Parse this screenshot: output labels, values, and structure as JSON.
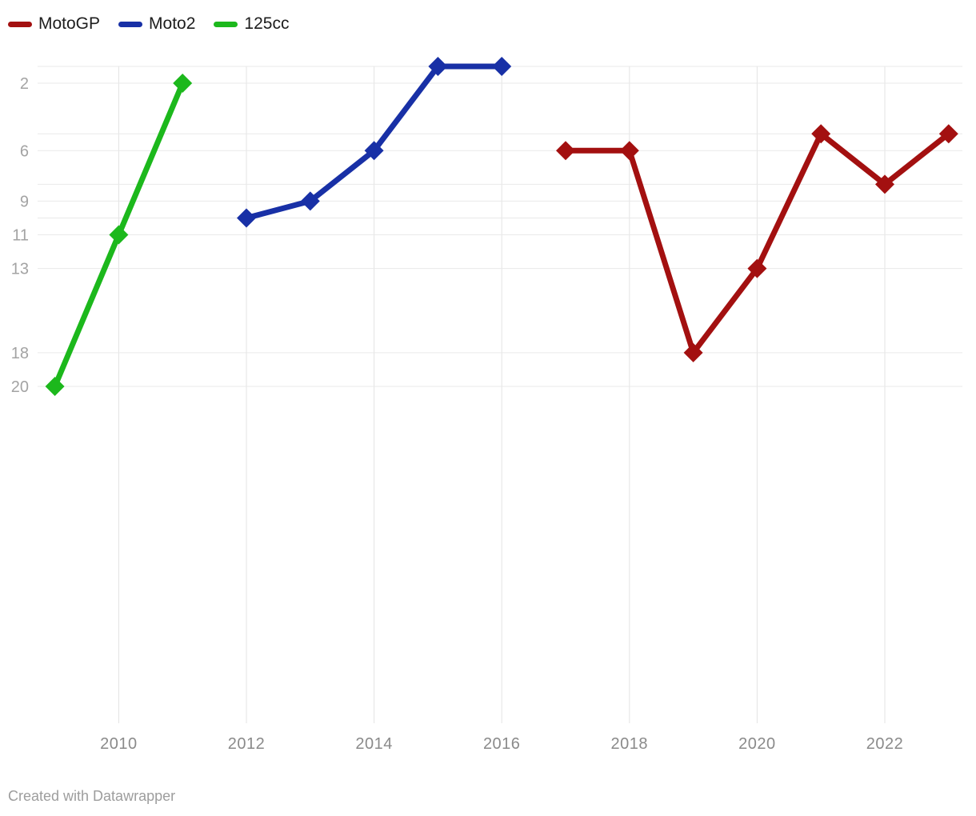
{
  "chart_data": {
    "type": "line",
    "title": "",
    "legend_position": "top-left",
    "grid": true,
    "marker": "diamond",
    "series": [
      {
        "name": "MotoGP",
        "color": "#a31010",
        "x": [
          2017,
          2018,
          2019,
          2020,
          2021,
          2022,
          2023
        ],
        "values": [
          6,
          6,
          18,
          13,
          5,
          8,
          5
        ]
      },
      {
        "name": "Moto2",
        "color": "#1830a6",
        "x": [
          2012,
          2013,
          2014,
          2015,
          2016
        ],
        "values": [
          10,
          9,
          6,
          1,
          1
        ]
      },
      {
        "name": "125cc",
        "color": "#1cb81c",
        "x": [
          2009,
          2010,
          2011
        ],
        "values": [
          20,
          11,
          2
        ]
      }
    ],
    "x_axis": {
      "min": 2009,
      "max": 2023,
      "labeled_years": [
        2010,
        2012,
        2014,
        2016,
        2018,
        2020,
        2022
      ]
    },
    "y_axis": {
      "inverted": true,
      "min": 1,
      "max": 40,
      "gridline_values": [
        1,
        2,
        5,
        6,
        8,
        9,
        10,
        11,
        13,
        18,
        20
      ],
      "labeled_ticks": [
        2,
        6,
        9,
        11,
        13,
        18,
        20
      ]
    }
  },
  "colors": {
    "background": "#ffffff",
    "h_gridline": "#e9e9e9",
    "v_gridline": "#e3e3e3",
    "y_label": "#a3a3a3",
    "x_label": "#8a8a8a",
    "legend_text": "#1d1d1d",
    "footer_text": "#9d9d9d"
  },
  "footer": {
    "credit": "Created with Datawrapper"
  }
}
